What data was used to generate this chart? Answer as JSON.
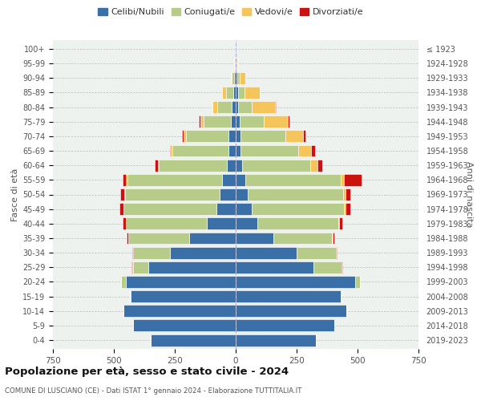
{
  "age_groups": [
    "0-4",
    "5-9",
    "10-14",
    "15-19",
    "20-24",
    "25-29",
    "30-34",
    "35-39",
    "40-44",
    "45-49",
    "50-54",
    "55-59",
    "60-64",
    "65-69",
    "70-74",
    "75-79",
    "80-84",
    "85-89",
    "90-94",
    "95-99",
    "100+"
  ],
  "birth_years": [
    "2019-2023",
    "2014-2018",
    "2009-2013",
    "2004-2008",
    "1999-2003",
    "1994-1998",
    "1989-1993",
    "1984-1988",
    "1979-1983",
    "1974-1978",
    "1969-1973",
    "1964-1968",
    "1959-1963",
    "1954-1958",
    "1949-1953",
    "1944-1948",
    "1939-1943",
    "1934-1938",
    "1929-1933",
    "1924-1928",
    "≤ 1923"
  ],
  "male": {
    "celibi": [
      350,
      420,
      460,
      430,
      450,
      360,
      270,
      190,
      120,
      80,
      65,
      55,
      35,
      30,
      30,
      20,
      15,
      10,
      5,
      2,
      2
    ],
    "coniugati": [
      0,
      0,
      0,
      5,
      20,
      60,
      150,
      250,
      330,
      380,
      390,
      390,
      280,
      230,
      175,
      110,
      60,
      30,
      10,
      2,
      0
    ],
    "vedovi": [
      0,
      0,
      0,
      0,
      0,
      5,
      0,
      0,
      1,
      2,
      3,
      5,
      3,
      5,
      10,
      15,
      20,
      15,
      5,
      1,
      0
    ],
    "divorziati": [
      0,
      0,
      0,
      0,
      0,
      2,
      5,
      8,
      12,
      15,
      15,
      15,
      15,
      5,
      5,
      5,
      0,
      0,
      0,
      0,
      0
    ]
  },
  "female": {
    "nubili": [
      330,
      405,
      455,
      430,
      490,
      320,
      250,
      155,
      90,
      65,
      50,
      40,
      25,
      20,
      20,
      15,
      10,
      10,
      5,
      3,
      2
    ],
    "coniugate": [
      0,
      0,
      0,
      5,
      20,
      115,
      160,
      240,
      330,
      380,
      390,
      390,
      280,
      235,
      185,
      100,
      55,
      25,
      10,
      2,
      0
    ],
    "vedove": [
      0,
      0,
      0,
      0,
      0,
      0,
      0,
      2,
      3,
      5,
      10,
      15,
      30,
      55,
      70,
      100,
      95,
      65,
      25,
      5,
      2
    ],
    "divorziate": [
      0,
      0,
      0,
      0,
      0,
      2,
      5,
      8,
      15,
      20,
      20,
      70,
      20,
      15,
      10,
      5,
      5,
      0,
      0,
      0,
      0
    ]
  },
  "colors": {
    "celibi": "#3a6fa8",
    "coniugati": "#b8cc8a",
    "vedovi": "#f5c45a",
    "divorziati": "#cc1111"
  },
  "title": "Popolazione per età, sesso e stato civile - 2024",
  "subtitle": "COMUNE DI LUSCIANO (CE) - Dati ISTAT 1° gennaio 2024 - Elaborazione TUTTITALIA.IT",
  "ylabel_left": "Fasce di età",
  "ylabel_right": "Anni di nascita",
  "xlim": 750,
  "bg_color": "#ffffff",
  "plot_bg_color": "#eef2ee",
  "grid_color": "#cccccc",
  "bar_edge_color": "#ffffff",
  "legend_labels": [
    "Celibi/Nubili",
    "Coniugati/e",
    "Vedovi/e",
    "Divorziati/e"
  ]
}
